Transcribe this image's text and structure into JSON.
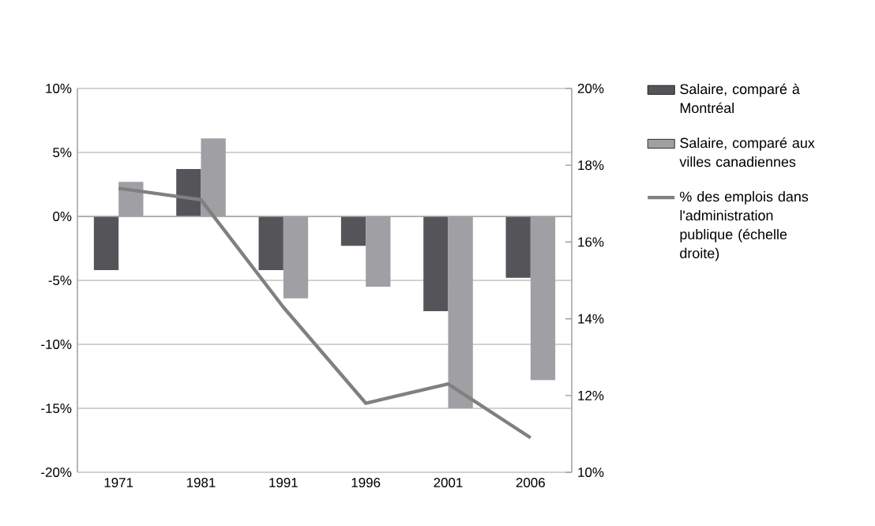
{
  "chart_data": {
    "type": "bar",
    "categories": [
      "1971",
      "1981",
      "1991",
      "1996",
      "2001",
      "2006"
    ],
    "series": [
      {
        "name": "Salaire, comparé à Montréal",
        "color": "#555559",
        "values": [
          -4.2,
          3.7,
          -4.2,
          -2.3,
          -7.4,
          -4.8
        ]
      },
      {
        "name": "Salaire, comparé aux villes canadiennes",
        "color": "#a0a0a4",
        "values": [
          2.7,
          6.1,
          -6.4,
          -5.5,
          -15.0,
          -12.8
        ]
      },
      {
        "name": "% des emplois dans l'administration publique (échelle droite)",
        "type": "line",
        "axis": "y2",
        "color": "#808080",
        "values": [
          17.4,
          17.1,
          14.3,
          11.8,
          12.3,
          10.9
        ]
      }
    ],
    "ylim": [
      -20,
      10
    ],
    "yticks": [
      {
        "value": -20,
        "label": "-20%"
      },
      {
        "value": -15,
        "label": "-15%"
      },
      {
        "value": -10,
        "label": "-10%"
      },
      {
        "value": -5,
        "label": "-5%"
      },
      {
        "value": 0,
        "label": "0%"
      },
      {
        "value": 5,
        "label": "5%"
      },
      {
        "value": 10,
        "label": "10%"
      }
    ],
    "y2lim": [
      10,
      20
    ],
    "y2ticks": [
      {
        "value": 10,
        "label": "10%"
      },
      {
        "value": 12,
        "label": "12%"
      },
      {
        "value": 14,
        "label": "14%"
      },
      {
        "value": 16,
        "label": "16%"
      },
      {
        "value": 18,
        "label": "18%"
      },
      {
        "value": 20,
        "label": "20%"
      }
    ],
    "grid": "y",
    "legend": "right",
    "marker": "none",
    "line_style": "solid"
  }
}
